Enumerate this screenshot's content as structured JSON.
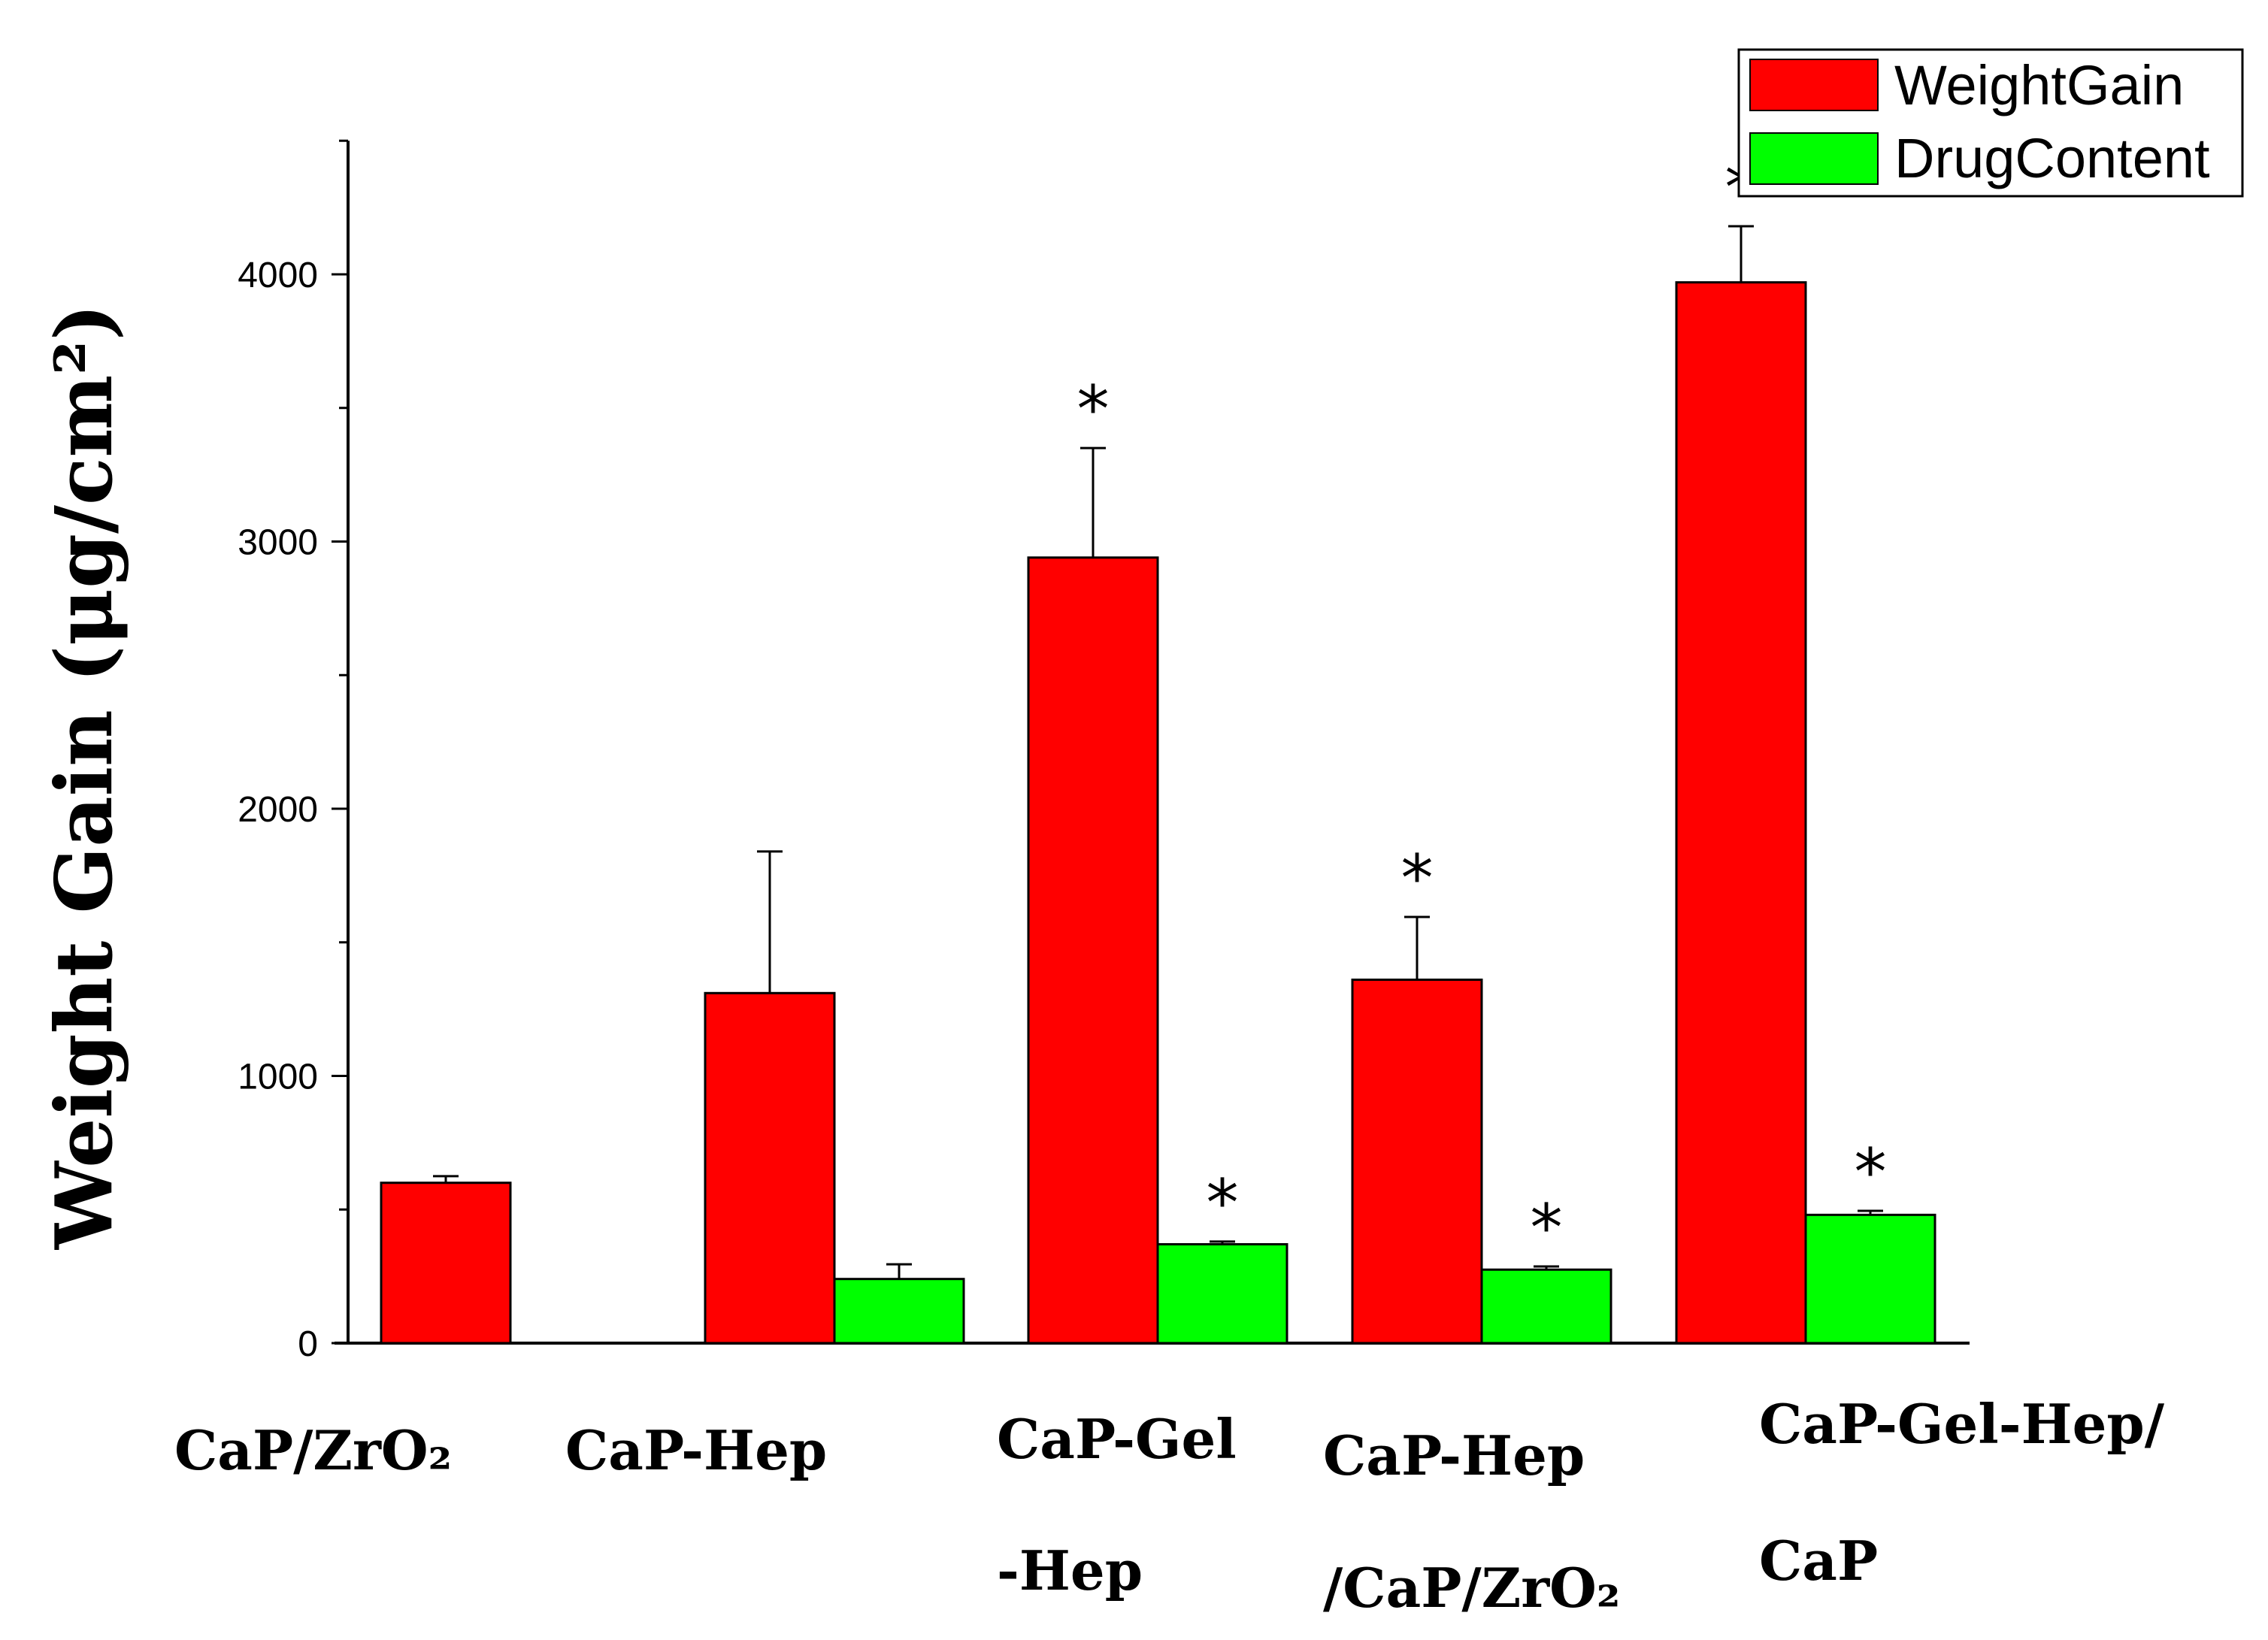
{
  "chart_data": {
    "type": "bar",
    "title": "",
    "xlabel": "",
    "ylabel": "Weight Gain (μg/cm²)",
    "ylim": [
      0,
      4500
    ],
    "yticks": [
      0,
      1000,
      2000,
      3000,
      4000
    ],
    "grid": false,
    "legend_position": "top-right",
    "categories": [
      [
        "CaP/ZrO₂"
      ],
      [
        "CaP-Hep"
      ],
      [
        "CaP-Gel",
        "-Hep"
      ],
      [
        "CaP-Hep",
        "/CaP/ZrO₂"
      ],
      [
        "CaP-Gel-Hep/",
        "CaP"
      ]
    ],
    "series": [
      {
        "name": "WeightGain",
        "color": "#ff0000",
        "values": [
          600,
          1310,
          2940,
          1360,
          3970
        ],
        "errors": [
          25,
          530,
          410,
          235,
          210
        ],
        "significance": [
          "",
          "",
          "*",
          "*",
          "*"
        ]
      },
      {
        "name": "DrugContent",
        "color": "#00ff00",
        "values": [
          null,
          240,
          370,
          275,
          480
        ],
        "errors": [
          null,
          55,
          10,
          12,
          15
        ],
        "significance": [
          "",
          "",
          "*",
          "*",
          "*"
        ]
      }
    ]
  }
}
